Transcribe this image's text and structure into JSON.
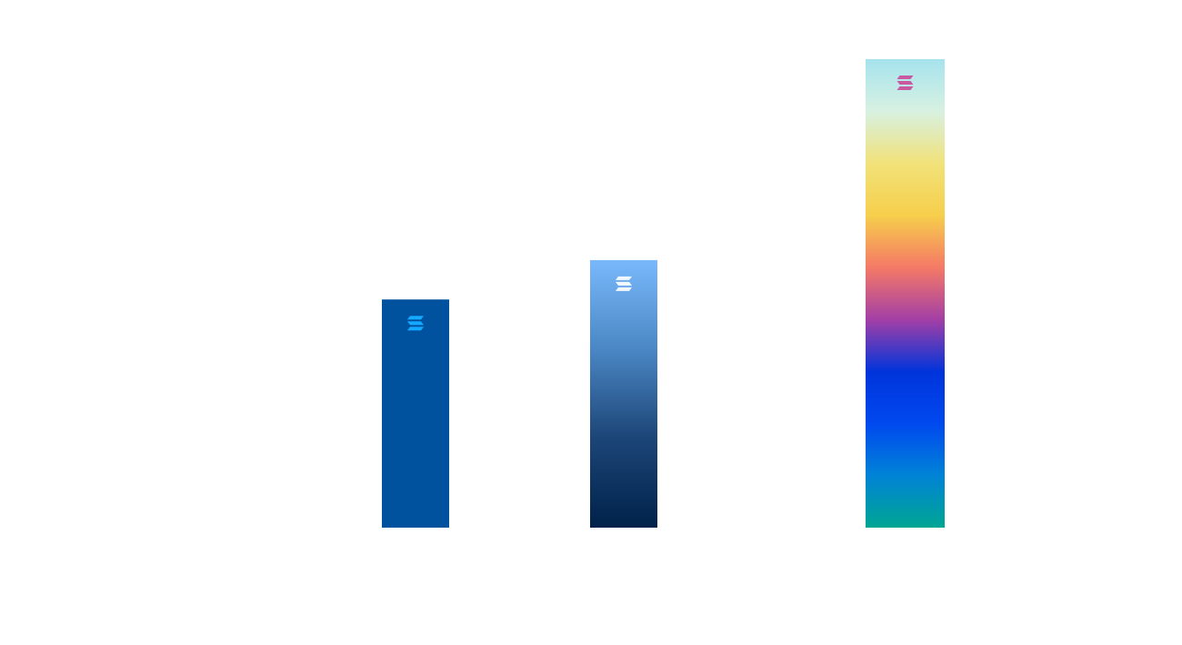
{
  "chart_data": {
    "type": "bar",
    "title": "",
    "xlabel": "",
    "ylabel": "",
    "ylim": [
      0,
      1
    ],
    "grid": false,
    "legend": "none",
    "categories": [
      "",
      "",
      ""
    ],
    "values": [
      0.487,
      0.571,
      1.0
    ],
    "bar_styles": [
      {
        "fill": "solid",
        "colors": [
          "#00529f"
        ],
        "icon": "solana-logo-icon",
        "icon_color": "#14a8ff"
      },
      {
        "fill": "vertical-gradient",
        "colors": [
          "#79b8fb",
          "#4a87c4",
          "#1c4577",
          "#00224a"
        ],
        "icon": "solana-logo-icon",
        "icon_color": "#f2f8ff"
      },
      {
        "fill": "vertical-gradient",
        "colors": [
          "#a6e3ee",
          "#d7f1e1",
          "#f1e27a",
          "#f6cf4b",
          "#f57a66",
          "#a33fa6",
          "#0034db",
          "#0049ef",
          "#0083d6",
          "#00a693"
        ],
        "icon": "solana-logo-icon",
        "icon_color": "#c95aa2"
      }
    ]
  }
}
